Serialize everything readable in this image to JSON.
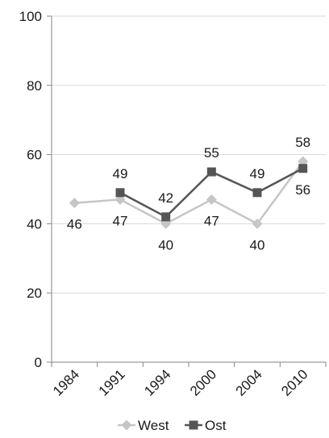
{
  "chart_data": {
    "type": "line",
    "categories": [
      "1984",
      "1991",
      "1994",
      "2000",
      "2004",
      "2010"
    ],
    "series": [
      {
        "name": "West",
        "color": "#c6c6c6",
        "marker": "diamond",
        "values": [
          46,
          47,
          40,
          47,
          40,
          58
        ],
        "labels": [
          "46",
          "47",
          "40",
          "47",
          "40",
          "58"
        ]
      },
      {
        "name": "Ost",
        "color": "#555555",
        "marker": "square",
        "values": [
          null,
          49,
          42,
          55,
          49,
          56
        ],
        "labels": [
          null,
          "49",
          "42",
          "55",
          "49",
          "56"
        ]
      }
    ],
    "ylim": [
      0,
      100
    ],
    "yticks": [
      0,
      20,
      40,
      60,
      80,
      100
    ],
    "grid": true,
    "legend": "bottom"
  }
}
